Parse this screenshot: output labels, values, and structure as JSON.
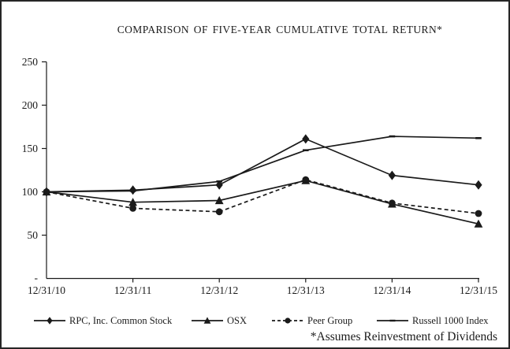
{
  "chart_data": {
    "type": "line",
    "title": "COMPARISON OF FIVE-YEAR CUMULATIVE TOTAL RETURN*",
    "footnote": "*Assumes Reinvestment of Dividends",
    "categories": [
      "12/31/10",
      "12/31/11",
      "12/31/12",
      "12/31/13",
      "12/31/14",
      "12/31/15"
    ],
    "series": [
      {
        "name": "RPC, Inc. Common Stock",
        "marker": "diamond",
        "line_style": "solid",
        "values": [
          100,
          102,
          108,
          161,
          119,
          108
        ]
      },
      {
        "name": "OSX",
        "marker": "triangle",
        "line_style": "solid",
        "values": [
          100,
          88,
          90,
          113,
          86,
          63
        ]
      },
      {
        "name": "Peer Group",
        "marker": "circle",
        "line_style": "dashed",
        "values": [
          100,
          81,
          77,
          114,
          87,
          75
        ]
      },
      {
        "name": "Russell 1000 Index",
        "marker": "dash",
        "line_style": "solid",
        "values": [
          100,
          101,
          112,
          148,
          164,
          162
        ]
      }
    ],
    "y_axis": {
      "tick_labels": [
        "250",
        "200",
        "150",
        "100",
        "50",
        "-"
      ],
      "tick_values": [
        250,
        200,
        150,
        100,
        50,
        0
      ],
      "min": 0,
      "max": 250
    },
    "x_axis": {
      "tick_labels": [
        "12/31/10",
        "12/31/11",
        "12/31/12",
        "12/31/13",
        "12/31/14",
        "12/31/15"
      ]
    },
    "grid": false,
    "legend_position": "bottom",
    "colors": {
      "ink": "#1a1a1a",
      "background": "#ffffff",
      "border": "#262626"
    }
  }
}
